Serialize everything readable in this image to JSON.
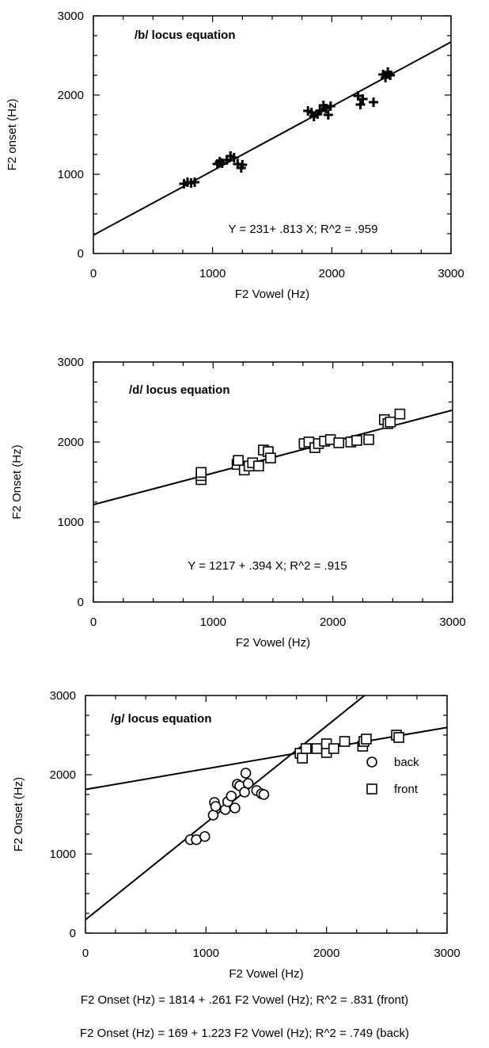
{
  "chart_data": [
    {
      "type": "scatter",
      "title": "/b/ locus equation",
      "xlabel": "F2 Vowel (Hz)",
      "ylabel": "F2 onset (Hz)",
      "xlim": [
        0,
        3000
      ],
      "ylim": [
        0,
        3000
      ],
      "x_ticks": [
        "0",
        "1000",
        "2000",
        "3000"
      ],
      "y_ticks": [
        "0",
        "1000",
        "2000",
        "3000"
      ],
      "marker": "plus",
      "series": [
        {
          "points": [
            [
              760,
              880
            ],
            [
              790,
              900
            ],
            [
              820,
              890
            ],
            [
              850,
              900
            ],
            [
              1040,
              1130
            ],
            [
              1060,
              1160
            ],
            [
              1080,
              1140
            ],
            [
              1120,
              1180
            ],
            [
              1150,
              1230
            ],
            [
              1180,
              1210
            ],
            [
              1210,
              1130
            ],
            [
              1240,
              1080
            ],
            [
              1250,
              1120
            ],
            [
              1800,
              1800
            ],
            [
              1830,
              1780
            ],
            [
              1850,
              1730
            ],
            [
              1880,
              1760
            ],
            [
              1900,
              1800
            ],
            [
              1930,
              1870
            ],
            [
              1950,
              1830
            ],
            [
              1970,
              1750
            ],
            [
              1990,
              1860
            ],
            [
              2220,
              1990
            ],
            [
              2240,
              1880
            ],
            [
              2260,
              1950
            ],
            [
              2350,
              1910
            ],
            [
              2430,
              2260
            ],
            [
              2450,
              2220
            ],
            [
              2470,
              2290
            ],
            [
              2490,
              2250
            ]
          ]
        }
      ],
      "fit_lines": [
        {
          "intercept": 231,
          "slope": 0.813,
          "label": "Y = 231+ .813 X; R^2 = .959"
        }
      ]
    },
    {
      "type": "scatter",
      "title": "/d/ locus equation",
      "xlabel": "F2 Vowel (Hz)",
      "ylabel": "F2 Onset (Hz)",
      "xlim": [
        0,
        3000
      ],
      "ylim": [
        0,
        3000
      ],
      "x_ticks": [
        "0",
        "1000",
        "2000",
        "3000"
      ],
      "y_ticks": [
        "0",
        "1000",
        "2000",
        "3000"
      ],
      "marker": "square",
      "series": [
        {
          "points": [
            [
              900,
              1530
            ],
            [
              900,
              1580
            ],
            [
              900,
              1620
            ],
            [
              1200,
              1720
            ],
            [
              1210,
              1770
            ],
            [
              1260,
              1650
            ],
            [
              1300,
              1700
            ],
            [
              1330,
              1740
            ],
            [
              1380,
              1700
            ],
            [
              1420,
              1900
            ],
            [
              1460,
              1880
            ],
            [
              1480,
              1800
            ],
            [
              1760,
              1980
            ],
            [
              1800,
              2000
            ],
            [
              1850,
              1930
            ],
            [
              1880,
              1980
            ],
            [
              1930,
              2010
            ],
            [
              1980,
              2030
            ],
            [
              2050,
              1990
            ],
            [
              2150,
              2000
            ],
            [
              2200,
              2020
            ],
            [
              2300,
              2030
            ],
            [
              2430,
              2280
            ],
            [
              2460,
              2230
            ],
            [
              2480,
              2250
            ],
            [
              2560,
              2350
            ]
          ]
        }
      ],
      "fit_lines": [
        {
          "intercept": 1217,
          "slope": 0.394,
          "label": "Y = 1217 + .394 X; R^2 = .915"
        }
      ]
    },
    {
      "type": "scatter",
      "title": "/g/ locus equation",
      "xlabel": "F2 Vowel (Hz)",
      "ylabel": "F2 Onset (Hz)",
      "xlim": [
        0,
        3000
      ],
      "ylim": [
        0,
        3000
      ],
      "x_ticks": [
        "0",
        "1000",
        "2000",
        "3000"
      ],
      "y_ticks": [
        "0",
        "1000",
        "2000",
        "3000"
      ],
      "legend": "right",
      "series": [
        {
          "name": "back",
          "marker": "circle",
          "points": [
            [
              870,
              1180
            ],
            [
              920,
              1180
            ],
            [
              990,
              1220
            ],
            [
              1060,
              1490
            ],
            [
              1070,
              1650
            ],
            [
              1080,
              1600
            ],
            [
              1160,
              1560
            ],
            [
              1180,
              1660
            ],
            [
              1210,
              1730
            ],
            [
              1240,
              1580
            ],
            [
              1260,
              1880
            ],
            [
              1280,
              1860
            ],
            [
              1320,
              1780
            ],
            [
              1330,
              2020
            ],
            [
              1350,
              1890
            ],
            [
              1420,
              1800
            ],
            [
              1460,
              1760
            ],
            [
              1480,
              1750
            ]
          ]
        },
        {
          "name": "front",
          "marker": "square",
          "points": [
            [
              1780,
              2270
            ],
            [
              1800,
              2210
            ],
            [
              1830,
              2330
            ],
            [
              1920,
              2330
            ],
            [
              2000,
              2280
            ],
            [
              2000,
              2390
            ],
            [
              2060,
              2330
            ],
            [
              2150,
              2420
            ],
            [
              2300,
              2360
            ],
            [
              2310,
              2420
            ],
            [
              2330,
              2450
            ],
            [
              2580,
              2500
            ],
            [
              2600,
              2470
            ]
          ]
        }
      ],
      "fit_lines": [
        {
          "intercept": 1814,
          "slope": 0.261
        },
        {
          "intercept": 169,
          "slope": 1.223
        }
      ],
      "equations": [
        "F2 Onset (Hz) = 1814 + .261 F2 Vowel (Hz); R^2 = .831 (front)",
        "F2 Onset (Hz) = 169 + 1.223 F2 Vowel (Hz); R^2 = .749 (back)"
      ]
    }
  ]
}
